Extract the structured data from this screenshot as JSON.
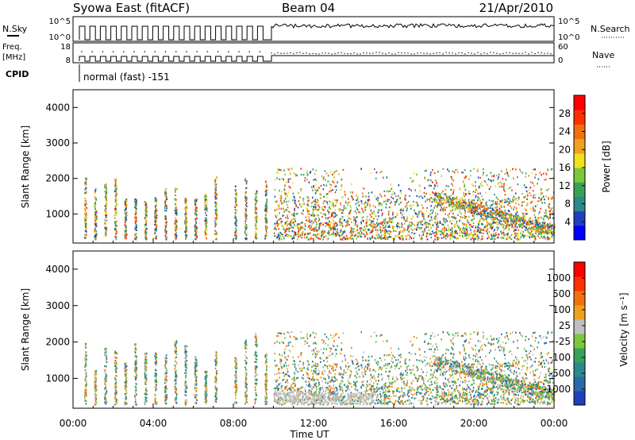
{
  "header": {
    "station": "Syowa East (fitACF)",
    "beam": "Beam 04",
    "date": "21/Apr/2010"
  },
  "summary_panels": {
    "nsky_label": "N.Sky",
    "nsearch_label": "N.Search",
    "nsky_ticks": [
      "10^5",
      "10^0"
    ],
    "nsearch_ticks": [
      "10^5",
      "10^0"
    ],
    "freq_label_line1": "Freq.",
    "freq_label_line2": "[MHz]",
    "freq_ticks": [
      "18",
      "8"
    ],
    "nave_label": "Nave",
    "nave_ticks": [
      "60",
      "0"
    ],
    "cpid_label": "CPID",
    "cpid_text": "normal (fast) -151"
  },
  "chart_data": [
    {
      "type": "heatmap",
      "name": "power-panel",
      "ylabel": "Slant Range [km]",
      "xlabel": "",
      "ylim": [
        180,
        4500
      ],
      "yticks": [
        "4000",
        "3000",
        "2000",
        "1000"
      ],
      "ytick_values": [
        4000,
        3000,
        2000,
        1000
      ],
      "xlim": [
        0,
        24
      ],
      "colorbar": {
        "label": "Power [dB]",
        "ticks": [
          "28",
          "24",
          "20",
          "16",
          "12",
          "8",
          "4"
        ],
        "colors": [
          "#0000ff",
          "#1f3fbf",
          "#2a8a8a",
          "#3aa05a",
          "#7cc83a",
          "#f0e020",
          "#f0a020",
          "#f07010",
          "#ff3000",
          "#ff0000"
        ]
      },
      "grid": false
    },
    {
      "type": "heatmap",
      "name": "velocity-panel",
      "ylabel": "Slant Range [km]",
      "xlabel": "Time UT",
      "ylim": [
        180,
        4500
      ],
      "yticks": [
        "4000",
        "3000",
        "2000",
        "1000"
      ],
      "ytick_values": [
        4000,
        3000,
        2000,
        1000
      ],
      "xlim": [
        0,
        24
      ],
      "xticks": [
        "00:00",
        "04:00",
        "08:00",
        "12:00",
        "16:00",
        "20:00",
        "00:00"
      ],
      "xtick_values": [
        0,
        4,
        8,
        12,
        16,
        20,
        24
      ],
      "colorbar": {
        "label": "Velocity [m s⁻¹]",
        "ticks": [
          "1000",
          "500",
          "100",
          "25",
          "-25",
          "-100",
          "-500",
          "-1000"
        ],
        "colors": [
          "#1f3fbf",
          "#2a6aa8",
          "#2a8a8a",
          "#3aa05a",
          "#7cc83a",
          "#c0c0c0",
          "#f0a020",
          "#f07010",
          "#ff3000",
          "#ff0000"
        ]
      },
      "grid": false
    }
  ]
}
